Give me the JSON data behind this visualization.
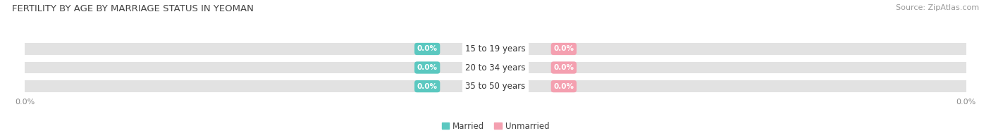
{
  "title": "FERTILITY BY AGE BY MARRIAGE STATUS IN YEOMAN",
  "source": "Source: ZipAtlas.com",
  "age_groups": [
    "35 to 50 years",
    "20 to 34 years",
    "15 to 19 years"
  ],
  "married_values": [
    0.0,
    0.0,
    0.0
  ],
  "unmarried_values": [
    0.0,
    0.0,
    0.0
  ],
  "married_color": "#5BC8C0",
  "unmarried_color": "#F4A0B0",
  "bar_bg_color": "#E2E2E2",
  "bar_separator_color": "#FFFFFF",
  "title_fontsize": 9.5,
  "source_fontsize": 8,
  "label_fontsize": 8.5,
  "badge_fontsize": 7.5,
  "tick_fontsize": 8,
  "legend_fontsize": 8.5,
  "background_color": "#FFFFFF",
  "axis_label_color": "#888888",
  "title_color": "#444444"
}
